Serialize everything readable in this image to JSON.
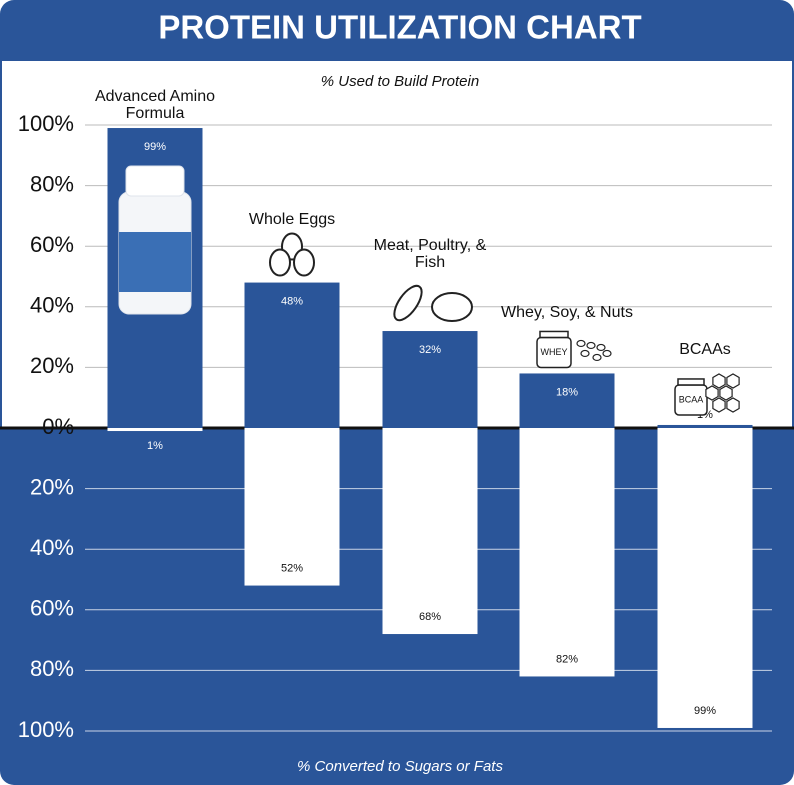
{
  "chart_data": {
    "type": "diverging-bar",
    "title": "PROTEIN UTILIZATION CHART",
    "ylabel": "% Used to Build Protein",
    "y2label": "% Converted to Sugars or Fats",
    "categories": [
      "Advanced Amino Formula",
      "Whole Eggs",
      "Meat, Poultry, & Fish",
      "Whey, Soy, & Nuts",
      "BCAAs"
    ],
    "series": [
      {
        "values": [
          99,
          48,
          32,
          18,
          1
        ],
        "value_labels": [
          "99%",
          "48%",
          "32%",
          "18%",
          "1%"
        ],
        "color": "#2a5599"
      },
      {
        "values": [
          1,
          52,
          68,
          82,
          99
        ],
        "value_labels": [
          "1%",
          "52%",
          "68%",
          "82%",
          "99%"
        ],
        "color": "#ffffff",
        "axis": "y2"
      }
    ],
    "ylim": [
      0,
      100
    ],
    "yticks": [
      {
        "value": 0,
        "label": "0%"
      },
      {
        "value": 20,
        "label": "20%"
      },
      {
        "value": 40,
        "label": "40%"
      },
      {
        "value": 60,
        "label": "60%"
      },
      {
        "value": 80,
        "label": "80%"
      },
      {
        "value": 100,
        "label": "100%"
      }
    ],
    "y2lim": [
      0,
      100
    ],
    "y2ticks": [
      {
        "value": 20,
        "label": "20%"
      },
      {
        "value": 40,
        "label": "40%"
      },
      {
        "value": 60,
        "label": "60%"
      },
      {
        "value": 80,
        "label": "80%"
      },
      {
        "value": 100,
        "label": "100%"
      }
    ],
    "grid": true,
    "icon_texts": [
      "WHEY",
      "BCAA"
    ]
  }
}
